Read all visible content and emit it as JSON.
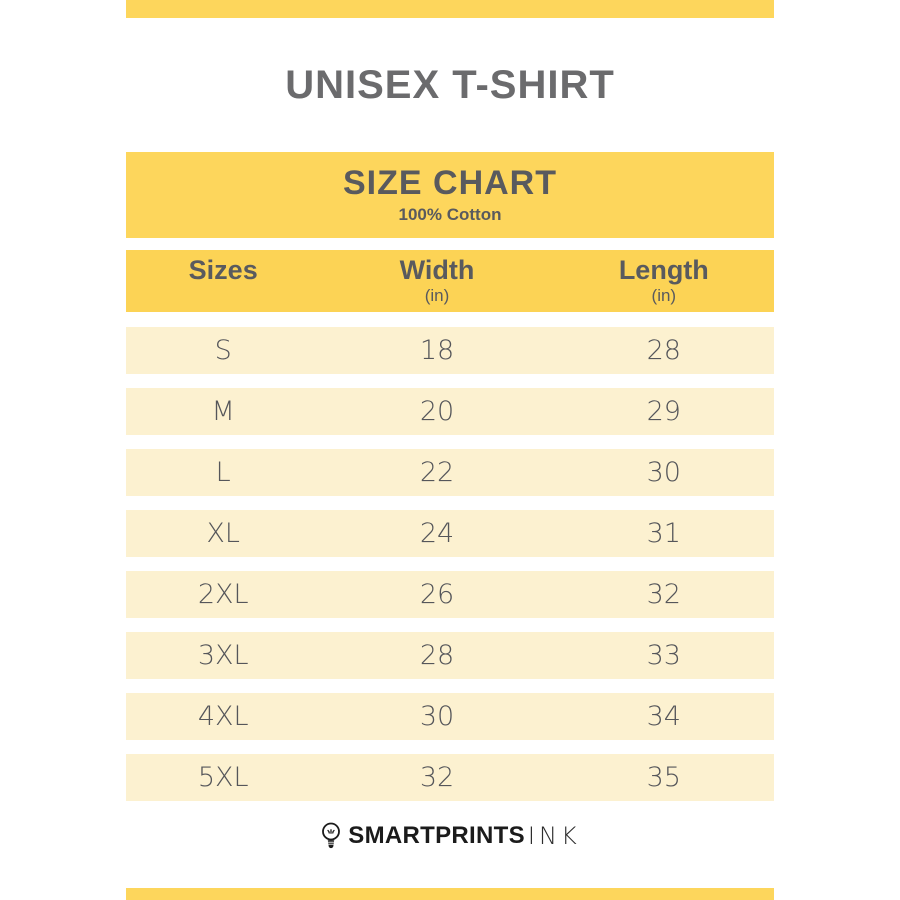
{
  "page": {
    "title": "UNISEX T-SHIRT"
  },
  "chart_data": {
    "type": "table",
    "title": "SIZE CHART",
    "subtitle": "100% Cotton",
    "columns": [
      {
        "label": "Sizes",
        "unit": ""
      },
      {
        "label": "Width",
        "unit": "(in)"
      },
      {
        "label": "Length",
        "unit": "(in)"
      }
    ],
    "rows": [
      {
        "size": "S",
        "width": "18",
        "length": "28"
      },
      {
        "size": "M",
        "width": "20",
        "length": "29"
      },
      {
        "size": "L",
        "width": "22",
        "length": "30"
      },
      {
        "size": "XL",
        "width": "24",
        "length": "31"
      },
      {
        "size": "2XL",
        "width": "26",
        "length": "32"
      },
      {
        "size": "3XL",
        "width": "28",
        "length": "33"
      },
      {
        "size": "4XL",
        "width": "30",
        "length": "34"
      },
      {
        "size": "5XL",
        "width": "32",
        "length": "35"
      }
    ]
  },
  "footer": {
    "brand_bold": "SMARTPRINTS",
    "brand_light": "INK",
    "logo_icon": "lightbulb-icon"
  },
  "colors": {
    "yellow": "#fdd65c",
    "header_yellow": "#fcd355",
    "row_cream": "#fcf1d0",
    "title_gray": "#6b6b6d",
    "heading_gray": "#595a5e",
    "text_gray": "#55565a"
  }
}
